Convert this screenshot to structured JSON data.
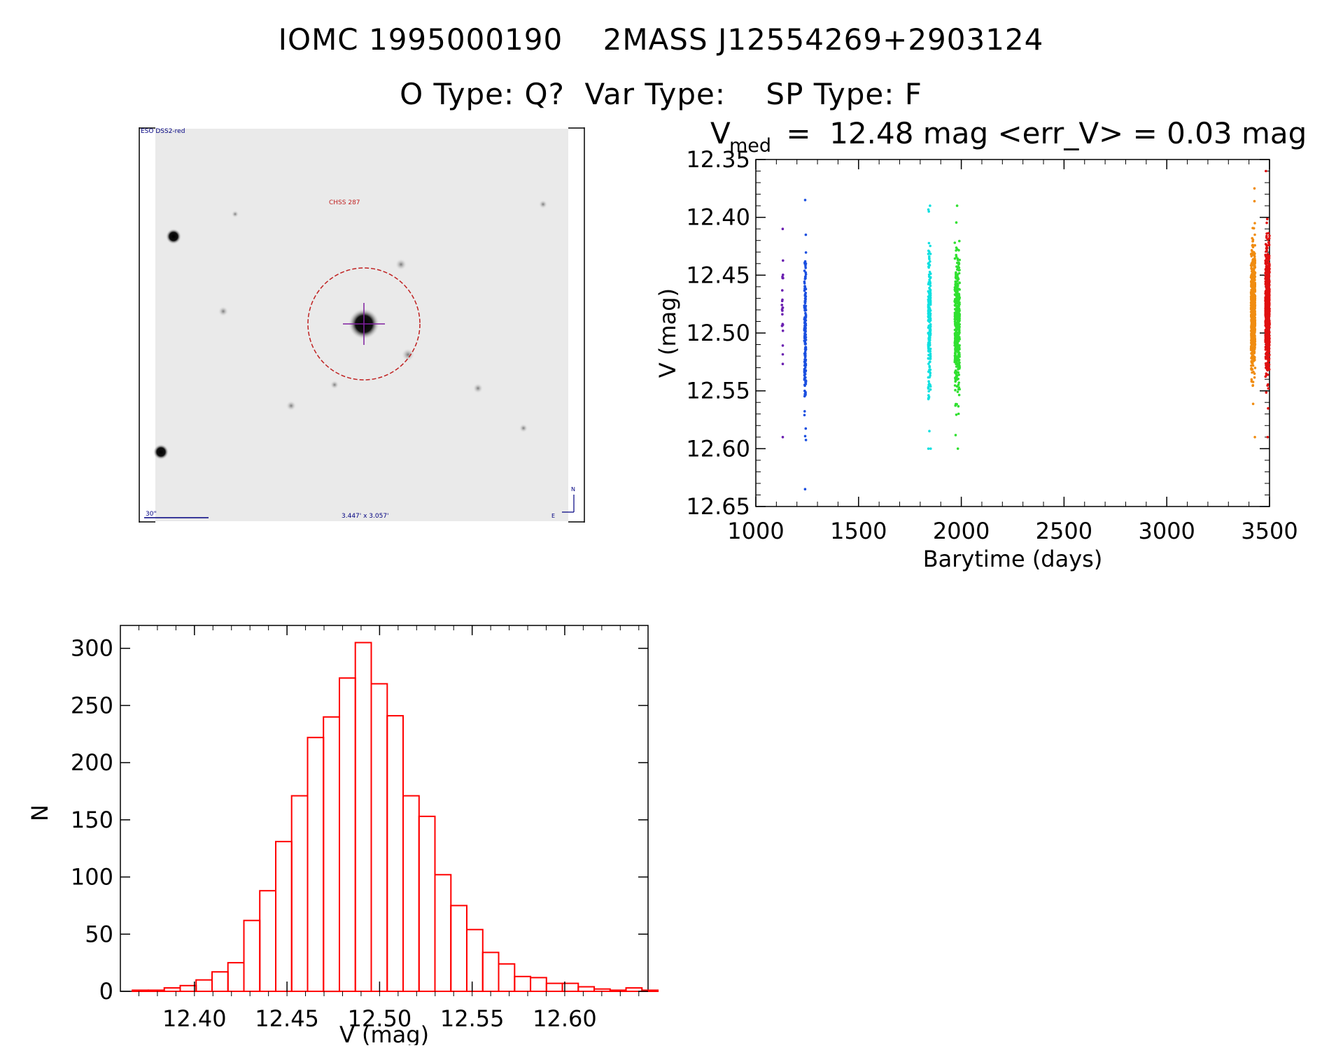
{
  "header": {
    "line1": "IOMC 1995000190    2MASS J12554269+2903124",
    "line2": "O Type: Q?  Var Type:    SP Type: F"
  },
  "thumbnail": {
    "survey_label": "ESO DSS2-red",
    "object_label": "CHSS 287",
    "scale_label": "30\"",
    "size_label": "3.447' x 3.057'",
    "north_label": "N",
    "east_label": "E",
    "circle_color": "#c02020",
    "cross_color": "#8020a0"
  },
  "lightcurve": {
    "title_prefix": "V",
    "title_sub": "med",
    "title_rest": " =  12.48 mag <err_V> = 0.03 mag",
    "chart_data": {
      "type": "scatter",
      "xlabel": "Barytime (days)",
      "ylabel": "V (mag)",
      "xlim": [
        1000,
        3500
      ],
      "ylim": [
        12.65,
        12.35
      ],
      "x_ticks": [
        1000,
        1500,
        2000,
        2500,
        3000,
        3500
      ],
      "y_ticks": [
        12.35,
        12.4,
        12.45,
        12.5,
        12.55,
        12.6,
        12.65
      ],
      "y_tick_labels": [
        "12.35",
        "12.40",
        "12.45",
        "12.50",
        "12.55",
        "12.60",
        "12.65"
      ],
      "series": [
        {
          "color": "#6a1fb0",
          "x_center": 1130,
          "x_halfwidth": 3,
          "n": 25,
          "y_center": 12.485,
          "y_sigma": 0.03,
          "y_min": 12.41,
          "y_max": 12.59
        },
        {
          "color": "#1a4fe0",
          "x_center": 1240,
          "x_halfwidth": 4,
          "n": 180,
          "y_center": 12.5,
          "y_sigma": 0.035,
          "y_min": 12.385,
          "y_max": 12.635
        },
        {
          "color": "#10e0e0",
          "x_center": 1845,
          "x_halfwidth": 6,
          "n": 220,
          "y_center": 12.495,
          "y_sigma": 0.03,
          "y_min": 12.39,
          "y_max": 12.6
        },
        {
          "color": "#30e030",
          "x_center": 1980,
          "x_halfwidth": 12,
          "n": 450,
          "y_center": 12.49,
          "y_sigma": 0.03,
          "y_min": 12.39,
          "y_max": 12.6
        },
        {
          "color": "#f08c10",
          "x_center": 3420,
          "x_halfwidth": 10,
          "n": 700,
          "y_center": 12.48,
          "y_sigma": 0.025,
          "y_min": 12.375,
          "y_max": 12.59
        },
        {
          "color": "#e01010",
          "x_center": 3490,
          "x_halfwidth": 10,
          "n": 700,
          "y_center": 12.48,
          "y_sigma": 0.025,
          "y_min": 12.36,
          "y_max": 12.59
        }
      ]
    }
  },
  "histogram": {
    "chart_data": {
      "type": "bar",
      "xlabel": "V (mag)",
      "ylabel": "N",
      "xlim": [
        12.36,
        12.645
      ],
      "ylim": [
        0,
        320
      ],
      "x_ticks": [
        12.4,
        12.45,
        12.5,
        12.55,
        12.6
      ],
      "x_tick_labels": [
        "12.40",
        "12.45",
        "12.50",
        "12.55",
        "12.60"
      ],
      "y_ticks": [
        0,
        50,
        100,
        150,
        200,
        250,
        300
      ],
      "bin_start": 12.3665,
      "bin_width": 0.0086,
      "values": [
        1,
        1,
        3,
        5,
        10,
        17,
        25,
        62,
        88,
        131,
        171,
        222,
        240,
        274,
        305,
        269,
        241,
        171,
        153,
        102,
        75,
        54,
        34,
        24,
        13,
        12,
        7,
        7,
        4,
        2,
        1,
        3,
        1
      ],
      "bar_color": "#ff0000"
    }
  }
}
